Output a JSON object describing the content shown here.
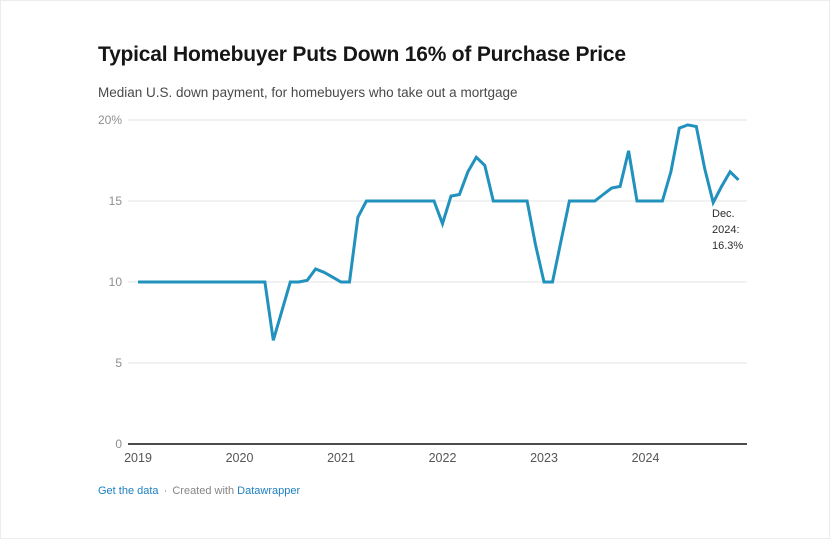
{
  "header": {
    "title": "Typical Homebuyer Puts Down 16% of Purchase Price",
    "subtitle": "Median U.S. down payment, for homebuyers who take out a mortgage"
  },
  "annotation": {
    "line1": "Dec.",
    "line2": "2024:",
    "line3": "16.3%"
  },
  "footer": {
    "get_data_label": "Get the data",
    "separator": "·",
    "created_with_label": "Created with",
    "brand_label": "Datawrapper"
  },
  "colors": {
    "line": "#2191bd",
    "grid": "#e3e3e3",
    "axis": "#4d4d4d",
    "link": "#1d81c0"
  },
  "chart_data": {
    "type": "line",
    "title": "Typical Homebuyer Puts Down 16% of Purchase Price",
    "subtitle": "Median U.S. down payment, for homebuyers who take out a mortgage",
    "unit": "%",
    "ylim": [
      0,
      20
    ],
    "grid": "horizontal",
    "x_start_year": 2019,
    "x_months_per_point": 1,
    "x_range": [
      "2019-01",
      "2024-12"
    ],
    "x_tick_years": [
      2019,
      2020,
      2021,
      2022,
      2023,
      2024
    ],
    "y_ticks": [
      {
        "value": 20,
        "label": "20%"
      },
      {
        "value": 15,
        "label": "15"
      },
      {
        "value": 10,
        "label": "10"
      },
      {
        "value": 5,
        "label": "5"
      },
      {
        "value": 0,
        "label": "0"
      }
    ],
    "series": [
      {
        "name": "Median U.S. down payment (% of purchase price)",
        "values": [
          10,
          10,
          10,
          10,
          10,
          10,
          10,
          10,
          10,
          10,
          10,
          10,
          10,
          10,
          10,
          10,
          6.4,
          8.2,
          10,
          10,
          10.1,
          10.8,
          10.6,
          10.3,
          10,
          10,
          14,
          15,
          15,
          15,
          15,
          15,
          15,
          15,
          15,
          15,
          13.6,
          15.3,
          15.4,
          16.8,
          17.7,
          17.2,
          15,
          15,
          15,
          15,
          15,
          12.3,
          10,
          10,
          12.5,
          15,
          15,
          15,
          15,
          15.4,
          15.8,
          15.9,
          18.1,
          15,
          15,
          15,
          15,
          16.8,
          19.5,
          19.7,
          19.6,
          17,
          14.9,
          15.9,
          16.8,
          16.3
        ]
      }
    ],
    "annotations": [
      {
        "label": "Dec. 2024: 16.3%",
        "x": "2024-12",
        "y": 16.3
      }
    ],
    "legend_position": "none"
  }
}
